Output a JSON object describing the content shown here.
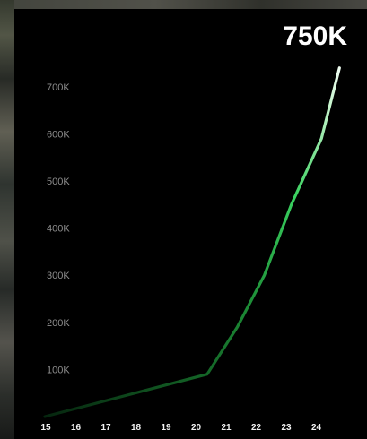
{
  "chart_data": {
    "type": "line",
    "title": "",
    "xlabel": "",
    "ylabel": "",
    "x": [
      15,
      20.4,
      21.4,
      22.3,
      23.2,
      24.2,
      24.8
    ],
    "series": [
      {
        "values": [
          0,
          90000,
          190000,
          300000,
          450000,
          590000,
          740000
        ]
      }
    ],
    "xticks": [
      "15",
      "16",
      "17",
      "18",
      "19",
      "20",
      "21",
      "22",
      "23",
      "24"
    ],
    "yticks": [
      "100K",
      "200K",
      "300K",
      "400K",
      "500K",
      "600K",
      "700K"
    ],
    "xlim": [
      15,
      25
    ],
    "ylim": [
      0,
      770000
    ],
    "annotation": "750K",
    "grid": false,
    "colors": {
      "line_start": "#0a3d1a",
      "line_mid": "#2ecc52",
      "line_end": "#ffffff",
      "background": "#000000",
      "ytick": "#8e8e8e",
      "xtick": "#f2f2f2"
    }
  }
}
